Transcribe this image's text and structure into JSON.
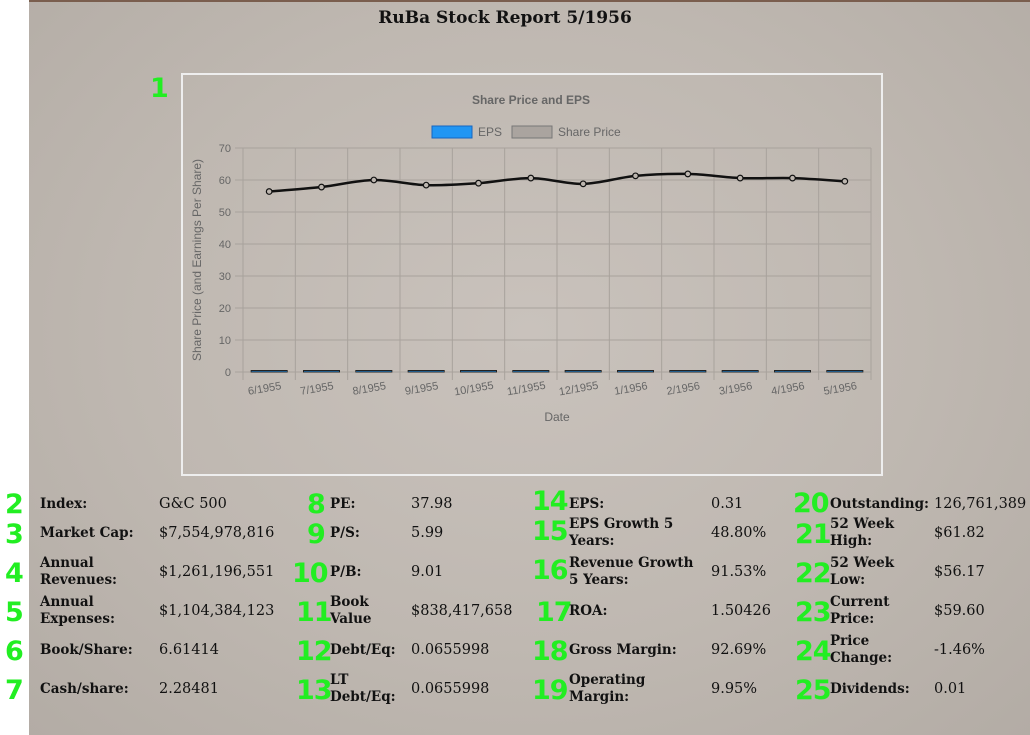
{
  "report": {
    "title": "RuBa Stock Report 5/1956"
  },
  "markers": [
    "1",
    "2",
    "3",
    "4",
    "5",
    "6",
    "7",
    "8",
    "9",
    "10",
    "11",
    "12",
    "13",
    "14",
    "15",
    "16",
    "17",
    "18",
    "19",
    "20",
    "21",
    "22",
    "23",
    "24",
    "25"
  ],
  "colors": {
    "marker": "#22ee22",
    "eps_series": "#2196f3",
    "price_series": "#111111",
    "price_legend_fill": "#aaa49f"
  },
  "chart_data": {
    "type": "line",
    "title": "Share Price and EPS",
    "xlabel": "Date",
    "ylabel": "Share Price (and Earnings Per Share)",
    "categories": [
      "6/1955",
      "7/1955",
      "8/1955",
      "9/1955",
      "10/1955",
      "11/1955",
      "12/1955",
      "1/1956",
      "2/1956",
      "3/1956",
      "4/1956",
      "5/1956"
    ],
    "ylim": [
      0,
      70
    ],
    "yticks": [
      0,
      10,
      20,
      30,
      40,
      50,
      60,
      70
    ],
    "grid": true,
    "legend_position": "top",
    "series": [
      {
        "name": "EPS",
        "kind": "bar",
        "values": [
          0.36,
          0.18,
          0.21,
          0.3,
          0.24,
          0.27,
          0.33,
          0.21,
          0.3,
          0.36,
          0.3,
          0.31
        ]
      },
      {
        "name": "Share Price",
        "kind": "line",
        "values": [
          56.4,
          57.8,
          60.0,
          58.4,
          59.0,
          60.6,
          58.8,
          61.3,
          61.9,
          60.6,
          60.6,
          59.6
        ]
      }
    ]
  },
  "stats": [
    {
      "label": "Index:",
      "value": "G&C 500"
    },
    {
      "label": "Market Cap:",
      "value": "$7,554,978,816"
    },
    {
      "label": "Annual Revenues:",
      "value": "$1,261,196,551"
    },
    {
      "label": "Annual Expenses:",
      "value": "$1,104,384,123"
    },
    {
      "label": "Book/Share:",
      "value": "6.61414"
    },
    {
      "label": "Cash/share:",
      "value": "2.28481"
    },
    {
      "label": "PE:",
      "value": "37.98"
    },
    {
      "label": "P/S:",
      "value": "5.99"
    },
    {
      "label": "P/B:",
      "value": "9.01"
    },
    {
      "label": "Book Value",
      "value": "$838,417,658"
    },
    {
      "label": "Debt/Eq:",
      "value": "0.0655998"
    },
    {
      "label": "LT Debt/Eq:",
      "value": "0.0655998"
    },
    {
      "label": "EPS:",
      "value": "0.31"
    },
    {
      "label": "EPS Growth 5 Years:",
      "value": "48.80%"
    },
    {
      "label": "Revenue Growth 5 Years:",
      "value": "91.53%"
    },
    {
      "label": "ROA:",
      "value": "1.50426"
    },
    {
      "label": "Gross Margin:",
      "value": "92.69%"
    },
    {
      "label": "Operating Margin:",
      "value": "9.95%"
    },
    {
      "label": "Outstanding:",
      "value": "126,761,389"
    },
    {
      "label": "52 Week High:",
      "value": "$61.82"
    },
    {
      "label": "52 Week Low:",
      "value": "$56.17"
    },
    {
      "label": "Current Price:",
      "value": "$59.60"
    },
    {
      "label": "Price Change:",
      "value": "-1.46%"
    },
    {
      "label": "Dividends:",
      "value": "0.01"
    }
  ]
}
